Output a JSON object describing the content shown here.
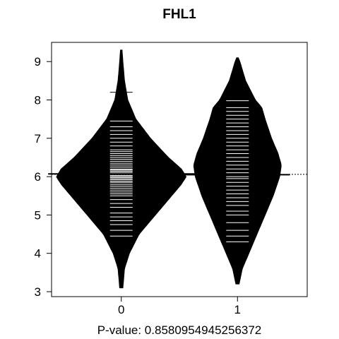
{
  "chart_data": {
    "type": "beanplot",
    "title": "FHL1",
    "xlabel": "P-value: 0.8580954945256372",
    "ylabel": "",
    "categories": [
      "0",
      "1"
    ],
    "ylim": [
      3,
      9
    ],
    "xlim": [
      -0.6,
      1.6
    ],
    "yticks": [
      3,
      4,
      5,
      6,
      7,
      8,
      9
    ],
    "grid": false,
    "overall_mean": 6.06,
    "series": [
      {
        "category": "0",
        "group_mean": 6.07,
        "range": [
          3.1,
          9.3
        ],
        "density": [
          [
            3.1,
            0.01
          ],
          [
            3.6,
            0.02
          ],
          [
            4.0,
            0.05
          ],
          [
            4.5,
            0.11
          ],
          [
            5.0,
            0.21
          ],
          [
            5.5,
            0.31
          ],
          [
            5.8,
            0.37
          ],
          [
            6.0,
            0.4
          ],
          [
            6.2,
            0.37
          ],
          [
            6.5,
            0.29
          ],
          [
            7.0,
            0.18
          ],
          [
            7.5,
            0.09
          ],
          [
            8.0,
            0.04
          ],
          [
            8.5,
            0.02
          ],
          [
            9.0,
            0.01
          ],
          [
            9.3,
            0.005
          ]
        ],
        "observations": [
          4.22,
          4.45,
          4.6,
          4.75,
          4.85,
          4.95,
          5.05,
          5.2,
          5.3,
          5.4,
          5.5,
          5.55,
          5.6,
          5.65,
          5.7,
          5.75,
          5.8,
          5.85,
          5.88,
          5.92,
          5.95,
          5.98,
          6.0,
          6.03,
          6.06,
          6.09,
          6.12,
          6.15,
          6.18,
          6.2,
          6.25,
          6.3,
          6.35,
          6.4,
          6.45,
          6.5,
          6.55,
          6.6,
          6.65,
          6.7,
          6.8,
          6.9,
          7.0,
          7.1,
          7.2,
          7.3,
          7.45,
          8.2
        ]
      },
      {
        "category": "1",
        "group_mean": 6.05,
        "range": [
          3.2,
          9.1
        ],
        "density": [
          [
            3.2,
            0.01
          ],
          [
            3.6,
            0.03
          ],
          [
            4.0,
            0.07
          ],
          [
            4.5,
            0.12
          ],
          [
            5.0,
            0.17
          ],
          [
            5.5,
            0.22
          ],
          [
            6.0,
            0.26
          ],
          [
            6.3,
            0.27
          ],
          [
            6.6,
            0.25
          ],
          [
            7.0,
            0.21
          ],
          [
            7.5,
            0.17
          ],
          [
            7.8,
            0.15
          ],
          [
            8.0,
            0.11
          ],
          [
            8.5,
            0.05
          ],
          [
            9.0,
            0.015
          ],
          [
            9.1,
            0.005
          ]
        ],
        "observations": [
          4.3,
          4.45,
          4.6,
          4.8,
          5.0,
          5.1,
          5.25,
          5.35,
          5.45,
          5.55,
          5.65,
          5.75,
          5.85,
          5.95,
          6.0,
          6.05,
          6.1,
          6.2,
          6.3,
          6.4,
          6.5,
          6.6,
          6.7,
          6.8,
          6.9,
          7.0,
          7.1,
          7.2,
          7.3,
          7.4,
          7.5,
          7.6,
          7.7,
          7.8,
          7.98
        ]
      }
    ]
  }
}
